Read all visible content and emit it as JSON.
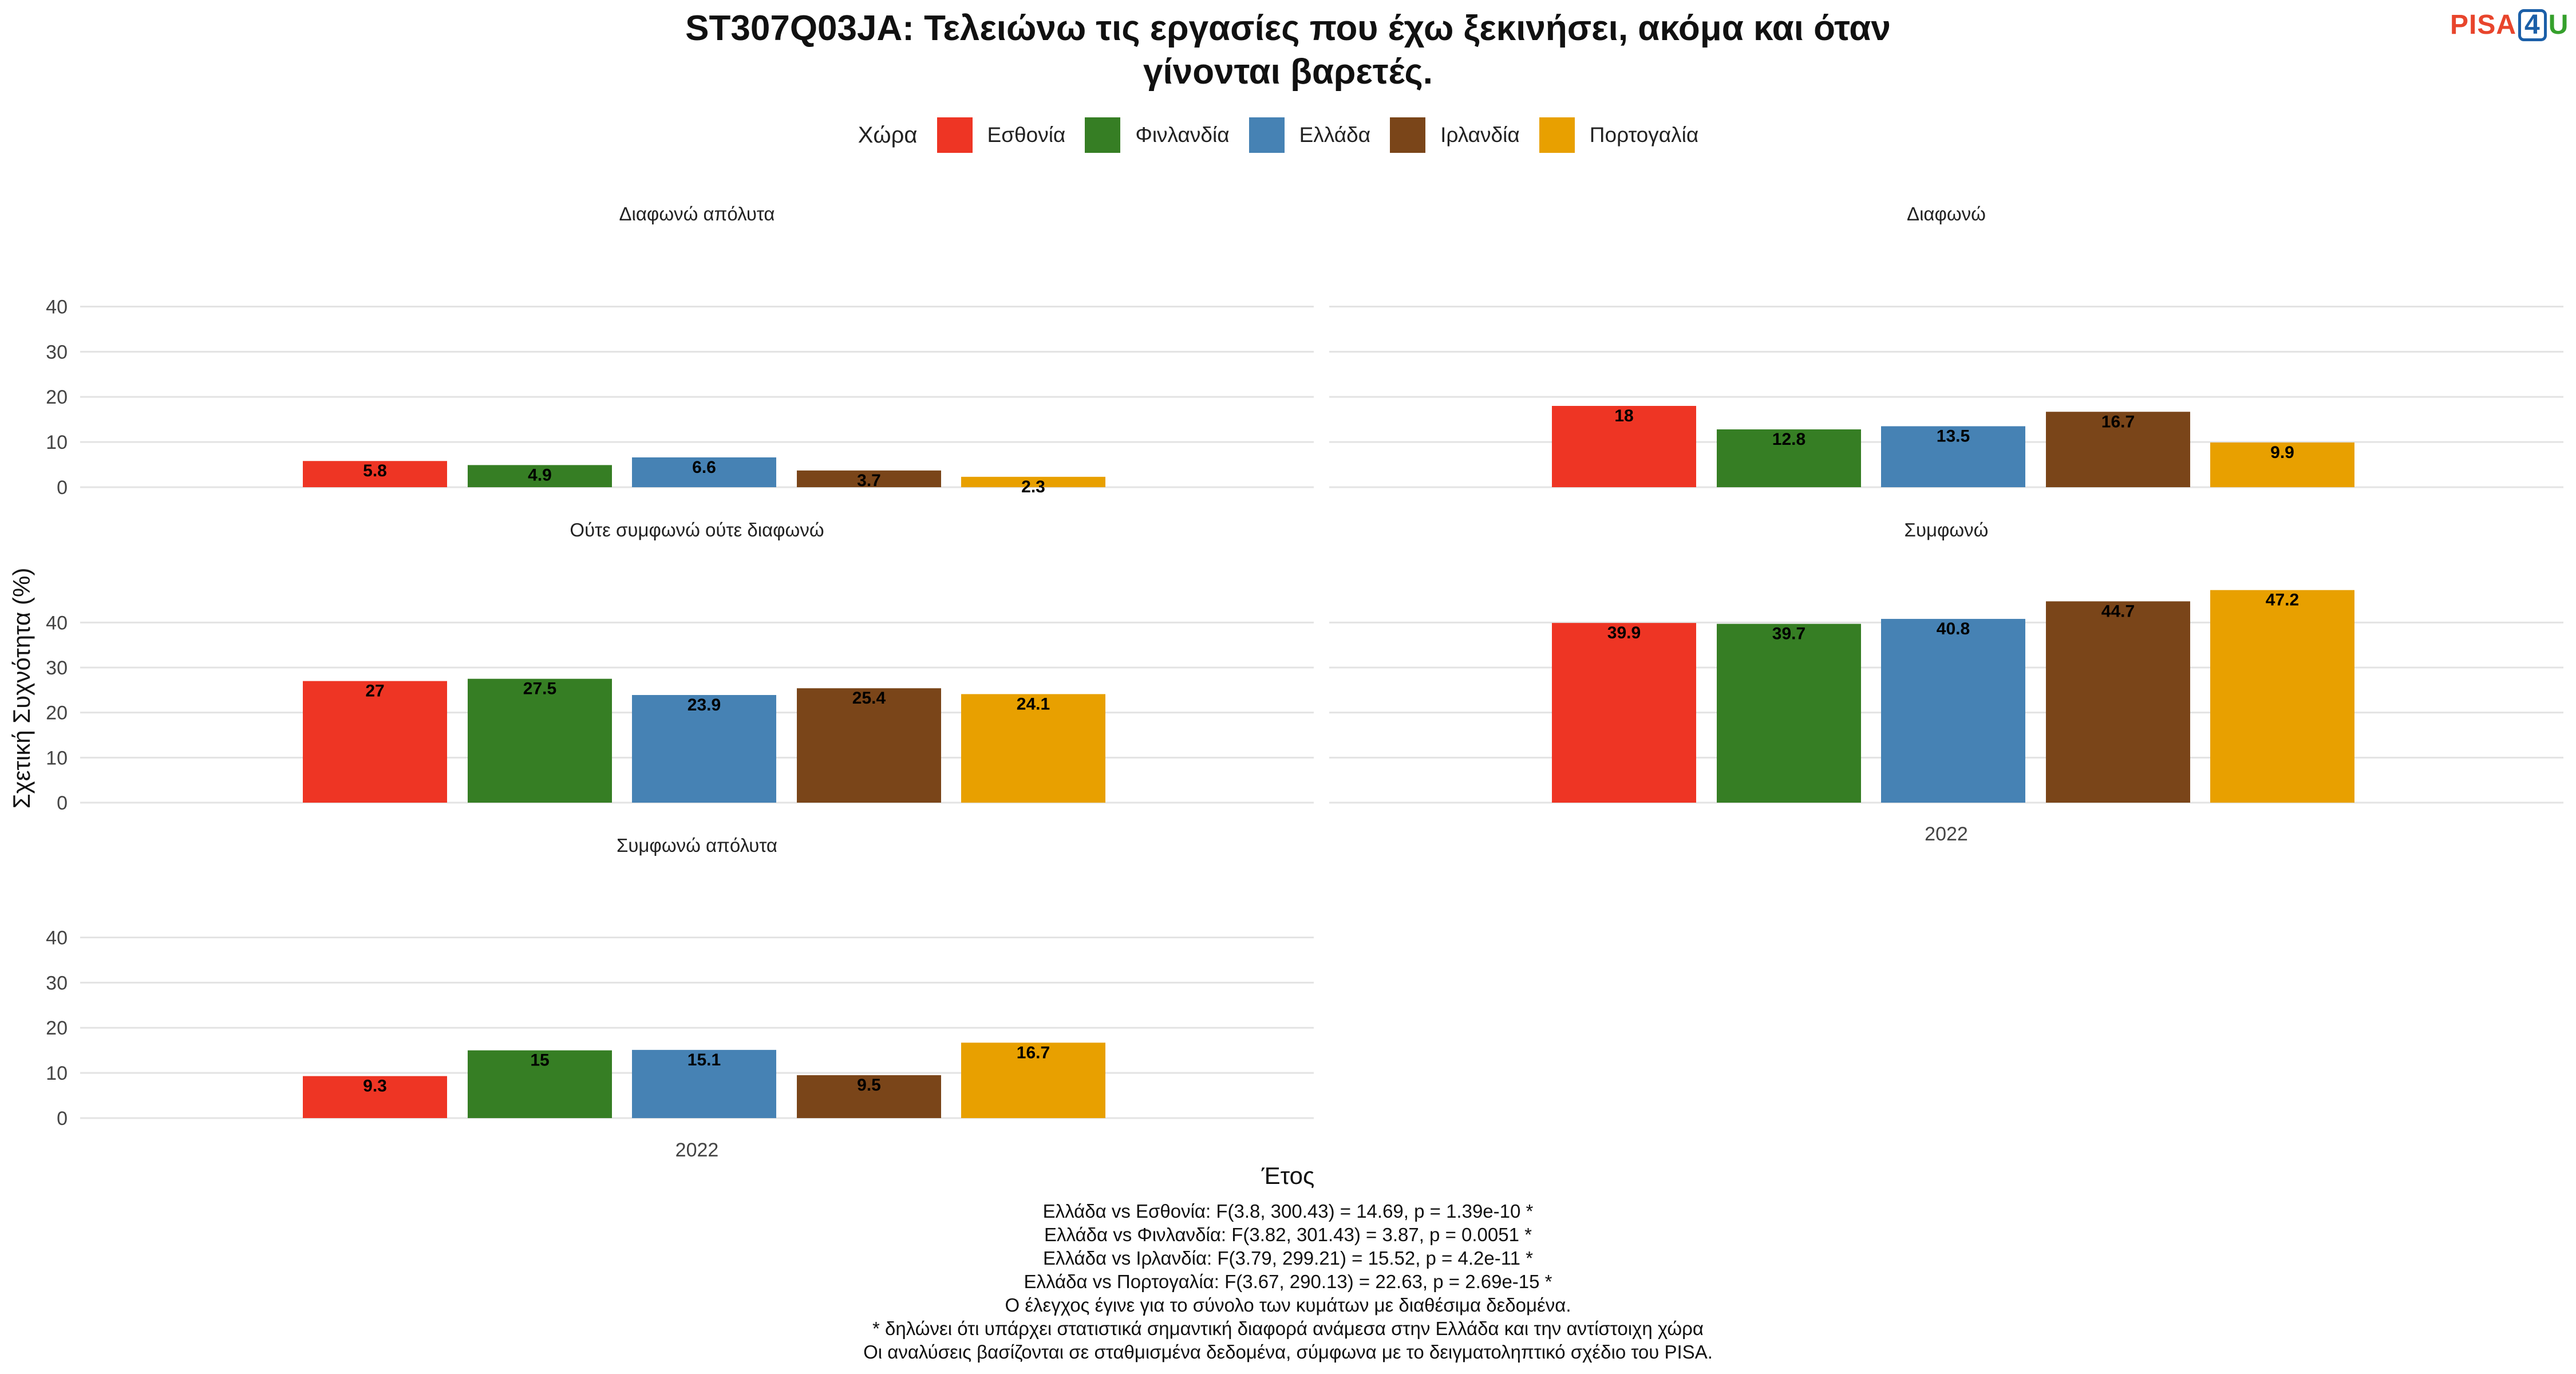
{
  "title_line1": "ST307Q03JA: Τελειώνω τις εργασίες που έχω ξεκινήσει, ακόμα και όταν",
  "title_line2": "γίνονται βαρετές.",
  "logo": {
    "text1": "PISA",
    "digit": "4",
    "text2": "U"
  },
  "legend": {
    "title": "Χώρα",
    "items": [
      {
        "label": "Εσθονία",
        "color": "#EE3524"
      },
      {
        "label": "Φινλανδία",
        "color": "#367E24"
      },
      {
        "label": "Ελλάδα",
        "color": "#4682B4"
      },
      {
        "label": "Ιρλανδία",
        "color": "#7A4519"
      },
      {
        "label": "Πορτογαλία",
        "color": "#E8A000"
      }
    ]
  },
  "footnotes": [
    "Ελλάδα vs Εσθονία: F(3.8, 300.43) = 14.69, p = 1.39e-10 *",
    "Ελλάδα vs Φινλανδία: F(3.82, 301.43) = 3.87, p = 0.0051 *",
    "Ελλάδα vs Ιρλανδία: F(3.79, 299.21) = 15.52, p = 4.2e-11 *",
    "Ελλάδα vs Πορτογαλία: F(3.67, 290.13) = 22.63, p = 2.69e-15 *",
    "Ο έλεγχος έγινε για το σύνολο των κυμάτων με διαθέσιμα δεδομένα.",
    "* δηλώνει ότι υπάρχει στατιστικά σημαντική διαφορά ανάμεσα στην Ελλάδα και την αντίστοιχη χώρα",
    "Οι αναλύσεις βασίζονται σε σταθμισμένα δεδομένα, σύμφωνα με το δειγματοληπτικό σχέδιο του PISA."
  ],
  "chart_data": {
    "type": "bar",
    "xlabel": "Έτος",
    "ylabel": "Σχετική Συχνότητα (%)",
    "ylim": [
      0,
      45
    ],
    "yticks": [
      0,
      10,
      20,
      30,
      40
    ],
    "grid": true,
    "legend_position": "top",
    "categories": [
      "2022"
    ],
    "series_names": [
      "Εσθονία",
      "Φινλανδία",
      "Ελλάδα",
      "Ιρλανδία",
      "Πορτογαλία"
    ],
    "facets": [
      {
        "label": "Διαφωνώ απόλυτα",
        "values": [
          5.8,
          4.9,
          6.6,
          3.7,
          2.3
        ]
      },
      {
        "label": "Διαφωνώ",
        "values": [
          18,
          12.8,
          13.5,
          16.7,
          9.9
        ]
      },
      {
        "label": "Ούτε συμφωνώ ούτε διαφωνώ",
        "values": [
          27,
          27.5,
          23.9,
          25.4,
          24.1
        ]
      },
      {
        "label": "Συμφωνώ",
        "values": [
          39.9,
          39.7,
          40.8,
          44.7,
          47.2
        ]
      },
      {
        "label": "Συμφωνώ απόλυτα",
        "values": [
          9.3,
          15,
          15.1,
          9.5,
          16.7
        ]
      }
    ]
  }
}
